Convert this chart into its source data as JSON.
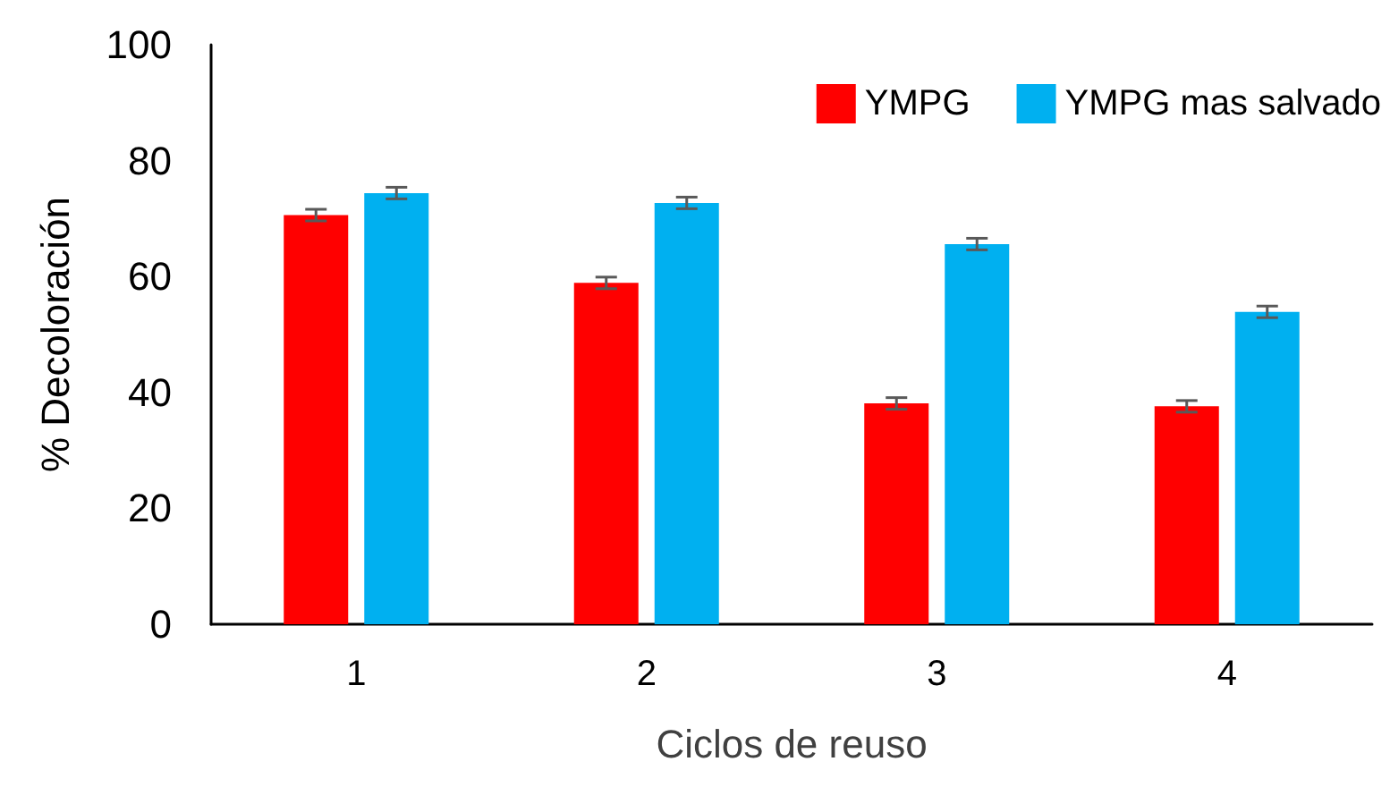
{
  "chart_data": {
    "type": "bar",
    "xlabel": "Ciclos de reuso",
    "ylabel": "% Decoloración",
    "categories": [
      "1",
      "2",
      "3",
      "4"
    ],
    "series": [
      {
        "name": "YMPG",
        "color": "#ff0000",
        "values": [
          70.6,
          58.9,
          38.1,
          37.6
        ],
        "errors": [
          1,
          1,
          1,
          1
        ]
      },
      {
        "name": "YMPG mas salvado",
        "color": "#00b0f0",
        "values": [
          74.4,
          72.7,
          65.6,
          53.9
        ],
        "errors": [
          1,
          1,
          1,
          1
        ]
      }
    ],
    "ylim": [
      0,
      100
    ],
    "yticks": [
      0,
      20,
      40,
      60,
      80,
      100
    ],
    "grid": false,
    "legend": "top right"
  }
}
